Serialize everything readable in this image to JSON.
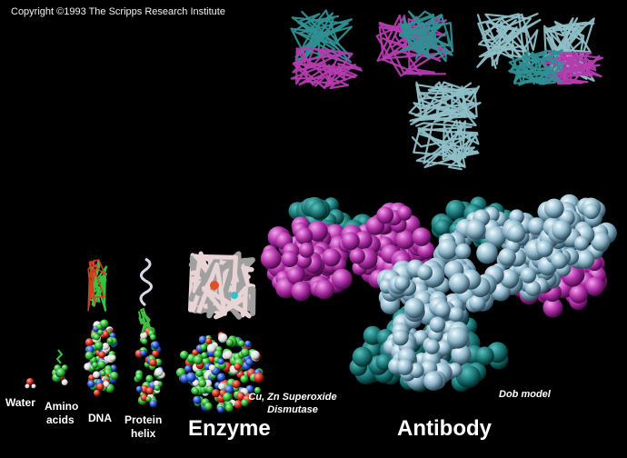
{
  "copyright": "Copyright ©1993 The Scripps Research Institute",
  "labels": {
    "water": "Water",
    "amino_line1": "Amino",
    "amino_line2": "acids",
    "dna": "DNA",
    "protein_line1": "Protein",
    "protein_line2": "helix",
    "enzyme": "Enzyme",
    "sod_line1": "Cu, Zn Superoxide",
    "sod_line2": "Dismutase",
    "dob": "Dob model",
    "antibody": "Antibody"
  },
  "colors": {
    "background": "#000000",
    "antibody_heavy": "#8fc0c8",
    "antibody_light": "#c040b8",
    "antibody_teal": "#1f7f80",
    "carbon": "#2ecc3a",
    "oxygen": "#e03020",
    "nitrogen": "#2060e0",
    "hydrogen": "#f0f0f0"
  }
}
